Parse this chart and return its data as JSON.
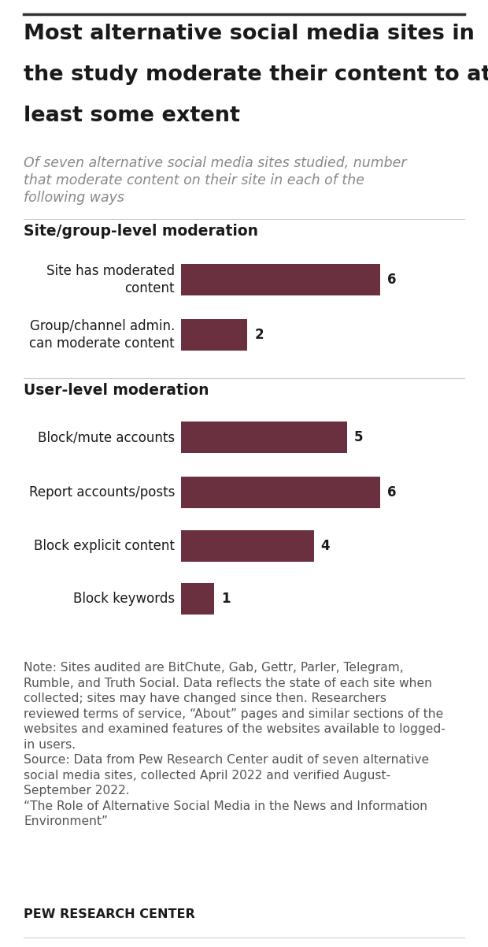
{
  "title_lines": [
    "Most alternative social media sites in",
    "the study moderate their content to at",
    "least some extent"
  ],
  "subtitle_lines": [
    "Of seven alternative social media sites studied, number",
    "that moderate content on their site in each of the",
    "following ways"
  ],
  "section1_label": "Site/group-level moderation",
  "section2_label": "User-level moderation",
  "categories": [
    "Site has moderated\ncontent",
    "Group/channel admin.\ncan moderate content",
    "Block/mute accounts",
    "Report accounts/posts",
    "Block explicit content",
    "Block keywords"
  ],
  "values": [
    6,
    2,
    5,
    6,
    4,
    1
  ],
  "bar_color": "#6b3040",
  "max_value": 7,
  "note_line1": "Note: Sites audited are BitChute, Gab, Gettr, Parler, Telegram,",
  "note_line2": "Rumble, and Truth Social. Data reflects the state of each site when",
  "note_line3": "collected; sites may have changed since then. Researchers",
  "note_line4": "reviewed terms of service, “About” pages and similar sections of the",
  "note_line5": "websites and examined features of the websites available to logged-",
  "note_line6": "in users.",
  "source_line1": "Source: Data from Pew Research Center audit of seven alternative",
  "source_line2": "social media sites, collected April 2022 and verified August-",
  "source_line3": "September 2022.",
  "quote_line1": "“The Role of Alternative Social Media in the News and Information",
  "quote_line2": "Environment”",
  "footer": "PEW RESEARCH CENTER",
  "background_color": "#ffffff",
  "text_color": "#1a1a1a",
  "subtitle_color": "#888888",
  "note_color": "#555555",
  "title_fontsize": 19.5,
  "subtitle_fontsize": 12.5,
  "section_fontsize": 13.5,
  "bar_label_fontsize": 12,
  "value_fontsize": 12,
  "note_fontsize": 11.2,
  "footer_fontsize": 11.5
}
